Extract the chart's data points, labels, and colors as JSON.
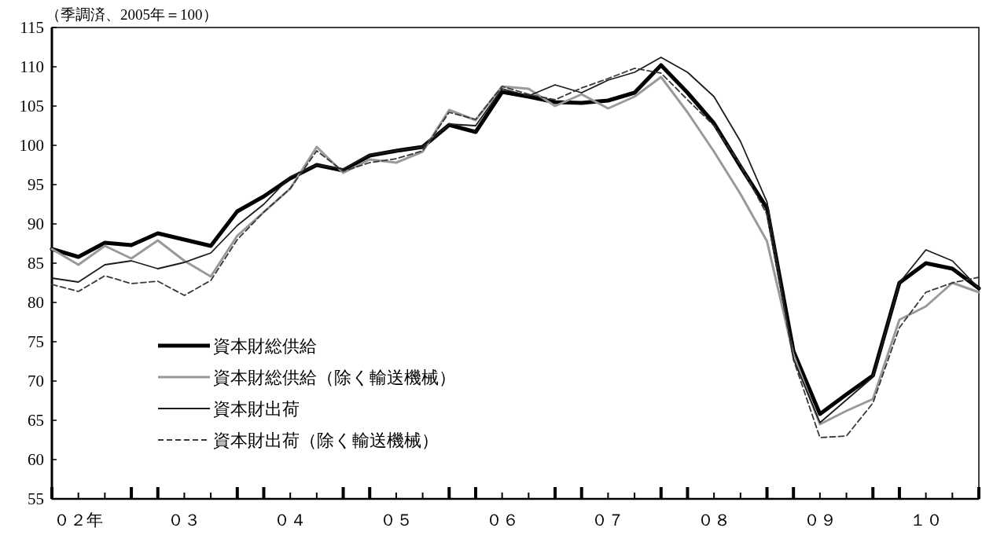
{
  "chart_data": {
    "type": "line",
    "ylabel": "（季調済、2005年＝100）",
    "categories": [
      null,
      "０２年",
      null,
      null,
      null,
      "０３",
      null,
      null,
      null,
      "０４",
      null,
      null,
      null,
      "０５",
      null,
      null,
      null,
      "０６",
      null,
      null,
      null,
      "０７",
      null,
      null,
      null,
      "０８",
      null,
      null,
      null,
      "０９",
      null,
      null,
      null,
      "１０",
      null,
      null
    ],
    "ylim": [
      55,
      115
    ],
    "yticks": [
      55,
      60,
      65,
      70,
      75,
      80,
      85,
      90,
      95,
      100,
      105,
      110,
      115
    ],
    "legend": "bottom left",
    "grid": false,
    "series": [
      {
        "name": "資本財総供給",
        "color": "#000000",
        "line_style": "solid",
        "values": [
          86.8,
          85.8,
          87.6,
          87.3,
          88.8,
          88.0,
          87.2,
          91.6,
          93.5,
          95.8,
          97.5,
          96.8,
          98.7,
          99.3,
          99.8,
          102.6,
          101.7,
          106.8,
          106.2,
          105.5,
          105.4,
          105.7,
          106.7,
          110.2,
          106.7,
          102.8,
          97.3,
          92.0,
          73.8,
          65.8,
          68.3,
          70.7,
          82.5,
          85.0,
          84.3,
          81.8
        ]
      },
      {
        "name": "資本財総供給（除く輸送機械）",
        "color": "#999999",
        "line_style": "solid",
        "values": [
          86.8,
          84.8,
          87.2,
          85.6,
          87.9,
          85.3,
          83.3,
          88.5,
          91.5,
          94.5,
          99.8,
          96.5,
          98.2,
          97.8,
          99.2,
          104.5,
          103.2,
          107.5,
          107.2,
          105.0,
          106.5,
          104.7,
          106.2,
          108.7,
          104.2,
          99.2,
          93.8,
          87.8,
          73.3,
          64.5,
          66.2,
          67.7,
          77.8,
          79.5,
          82.5,
          81.3
        ]
      },
      {
        "name": "資本財出荷",
        "color": "#1c1c1c",
        "line_style": "solid",
        "values": [
          83.1,
          82.6,
          84.8,
          85.3,
          84.3,
          85.1,
          86.3,
          89.8,
          92.5,
          96.0,
          97.5,
          97.0,
          98.8,
          99.3,
          99.8,
          102.7,
          102.5,
          107.2,
          106.3,
          107.7,
          106.7,
          108.3,
          109.3,
          111.2,
          109.3,
          106.2,
          100.5,
          92.8,
          72.8,
          64.7,
          67.6,
          70.5,
          82.5,
          86.7,
          85.3,
          81.8
        ]
      },
      {
        "name": "資本財出荷（除く輸送機械）",
        "color": "#383838",
        "line_style": "dashed",
        "values": [
          82.3,
          81.4,
          83.4,
          82.4,
          82.7,
          80.9,
          82.8,
          88.0,
          91.5,
          94.5,
          99.3,
          96.7,
          97.8,
          98.3,
          99.3,
          104.2,
          103.3,
          107.5,
          106.5,
          105.8,
          107.3,
          108.5,
          109.8,
          109.2,
          105.8,
          102.5,
          97.5,
          91.2,
          72.7,
          62.8,
          63.0,
          67.2,
          76.8,
          81.3,
          82.5,
          83.2
        ]
      }
    ]
  }
}
